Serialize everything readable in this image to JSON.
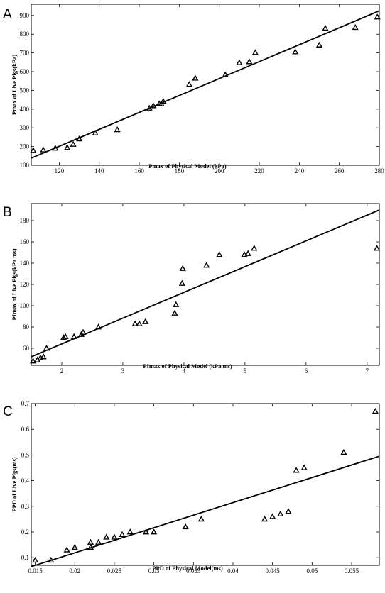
{
  "chart_data": [
    {
      "type": "scatter",
      "panel_label": "A",
      "xlabel": "Pmax of Physical Model (kPa)",
      "ylabel": "Pmax of Live Pigs(kPa)",
      "xlim": [
        106,
        280
      ],
      "ylim": [
        100,
        960
      ],
      "xticks": [
        120,
        140,
        160,
        180,
        200,
        220,
        240,
        260,
        280
      ],
      "yticks": [
        100,
        200,
        300,
        400,
        500,
        600,
        700,
        800,
        900
      ],
      "points": [
        [
          107,
          179
        ],
        [
          112,
          182
        ],
        [
          118,
          191
        ],
        [
          124,
          195
        ],
        [
          127,
          212
        ],
        [
          130,
          241
        ],
        [
          138,
          272
        ],
        [
          149,
          290
        ],
        [
          165,
          405
        ],
        [
          167,
          418
        ],
        [
          170,
          429
        ],
        [
          171,
          428
        ],
        [
          172,
          441
        ],
        [
          185,
          532
        ],
        [
          188,
          565
        ],
        [
          203,
          583
        ],
        [
          210,
          648
        ],
        [
          215,
          653
        ],
        [
          218,
          702
        ],
        [
          238,
          706
        ],
        [
          250,
          742
        ],
        [
          253,
          832
        ],
        [
          268,
          836
        ],
        [
          279,
          892
        ]
      ],
      "fit_line": [
        [
          106,
          138
        ],
        [
          280,
          925
        ]
      ],
      "marker": "triangle-open"
    },
    {
      "type": "scatter",
      "panel_label": "B",
      "xlabel": "PImax of Physical Model (kPa ms)",
      "ylabel": "PImax of Live Pigs(kPa ms)",
      "xlim": [
        1.5,
        7.2
      ],
      "ylim": [
        44,
        196
      ],
      "xticks": [
        2,
        3,
        4,
        5,
        6,
        7
      ],
      "yticks": [
        60,
        80,
        100,
        120,
        140,
        160,
        180
      ],
      "points": [
        [
          1.53,
          48
        ],
        [
          1.6,
          49
        ],
        [
          1.65,
          51
        ],
        [
          1.7,
          52
        ],
        [
          1.75,
          60
        ],
        [
          2.03,
          70
        ],
        [
          2.06,
          71
        ],
        [
          2.2,
          71
        ],
        [
          2.32,
          73
        ],
        [
          2.35,
          75
        ],
        [
          2.6,
          80
        ],
        [
          3.2,
          83
        ],
        [
          3.27,
          83
        ],
        [
          3.37,
          85
        ],
        [
          3.85,
          93
        ],
        [
          3.87,
          101
        ],
        [
          3.97,
          121
        ],
        [
          3.98,
          135
        ],
        [
          4.37,
          138
        ],
        [
          4.58,
          148
        ],
        [
          4.99,
          148
        ],
        [
          5.05,
          149
        ],
        [
          5.15,
          154
        ],
        [
          7.16,
          154
        ]
      ],
      "fit_line": [
        [
          1.5,
          52
        ],
        [
          7.2,
          190
        ]
      ],
      "marker": "triangle-open"
    },
    {
      "type": "scatter",
      "panel_label": "C",
      "xlabel": "PPD of Physical Model(ms)",
      "ylabel": "PPD of Live Pigs(ms)",
      "xlim": [
        0.0145,
        0.0585
      ],
      "ylim": [
        0.07,
        0.7
      ],
      "xticks": [
        0.015,
        0.02,
        0.025,
        0.03,
        0.035,
        0.04,
        0.045,
        0.05,
        0.055
      ],
      "yticks": [
        0.1,
        0.2,
        0.3,
        0.4,
        0.5,
        0.6,
        0.7
      ],
      "points": [
        [
          0.015,
          0.09
        ],
        [
          0.017,
          0.09
        ],
        [
          0.019,
          0.13
        ],
        [
          0.02,
          0.14
        ],
        [
          0.022,
          0.14
        ],
        [
          0.022,
          0.16
        ],
        [
          0.023,
          0.16
        ],
        [
          0.024,
          0.18
        ],
        [
          0.025,
          0.18
        ],
        [
          0.026,
          0.19
        ],
        [
          0.027,
          0.2
        ],
        [
          0.029,
          0.2
        ],
        [
          0.03,
          0.2
        ],
        [
          0.034,
          0.22
        ],
        [
          0.036,
          0.25
        ],
        [
          0.044,
          0.25
        ],
        [
          0.045,
          0.26
        ],
        [
          0.046,
          0.27
        ],
        [
          0.047,
          0.28
        ],
        [
          0.048,
          0.44
        ],
        [
          0.049,
          0.45
        ],
        [
          0.054,
          0.51
        ],
        [
          0.058,
          0.67
        ]
      ],
      "fit_line": [
        [
          0.0145,
          0.065
        ],
        [
          0.0585,
          0.495
        ]
      ],
      "marker": "triangle-open"
    }
  ]
}
